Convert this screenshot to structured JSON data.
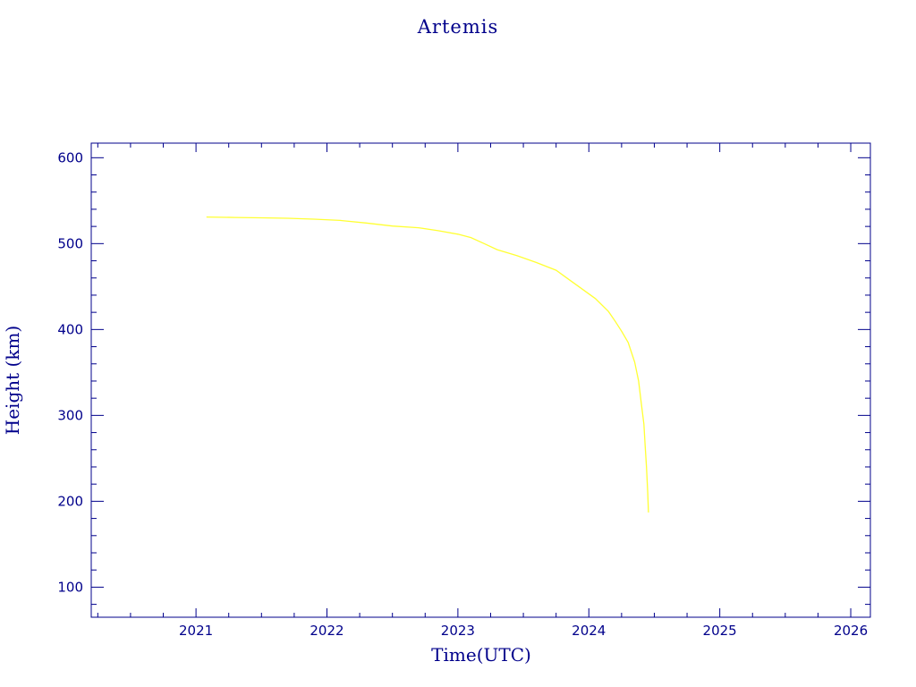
{
  "chart_data": {
    "type": "line",
    "title": "Artemis",
    "xlabel": "Time(UTC)",
    "ylabel": "Height (km)",
    "xlim": [
      2020.2,
      2026.15
    ],
    "ylim": [
      65,
      617
    ],
    "x_ticks": [
      "2021",
      "2022",
      "2023",
      "2024",
      "2025",
      "2026"
    ],
    "y_ticks": [
      "100",
      "200",
      "300",
      "400",
      "500",
      "600"
    ],
    "grid": false,
    "colors": {
      "axis": "#00008b",
      "series": "#ffff33",
      "background": "#ffffff"
    },
    "series": [
      {
        "x": [
          2021.08,
          2021.3,
          2021.5,
          2021.7,
          2021.9,
          2022.1,
          2022.3,
          2022.5,
          2022.7,
          2022.85,
          2023.0,
          2023.1,
          2023.2,
          2023.3,
          2023.45,
          2023.6,
          2023.75,
          2023.85,
          2023.95,
          2024.05,
          2024.15,
          2024.2,
          2024.25,
          2024.3,
          2024.35,
          2024.38,
          2024.4,
          2024.42,
          2024.43,
          2024.44,
          2024.45,
          2024.455
        ],
        "y": [
          531,
          530.5,
          530,
          529.5,
          528.5,
          527,
          524,
          520.5,
          518.5,
          515,
          511,
          507,
          500,
          493,
          486,
          478,
          469,
          458,
          447,
          436,
          421,
          410,
          398,
          385,
          362,
          340,
          315,
          290,
          265,
          240,
          210,
          187
        ]
      }
    ]
  }
}
